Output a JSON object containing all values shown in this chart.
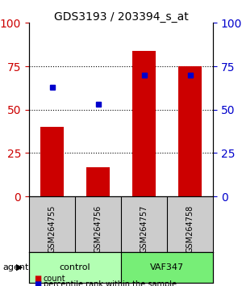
{
  "title": "GDS3193 / 203394_s_at",
  "samples": [
    "GSM264755",
    "GSM264756",
    "GSM264757",
    "GSM264758"
  ],
  "groups": [
    "control",
    "control",
    "VAF347",
    "VAF347"
  ],
  "bar_values": [
    40,
    17,
    84,
    75
  ],
  "dot_values": [
    63,
    53,
    70,
    70
  ],
  "bar_color": "#cc0000",
  "dot_color": "#0000cc",
  "ylim": [
    0,
    100
  ],
  "yticks": [
    0,
    25,
    50,
    75,
    100
  ],
  "group_colors": {
    "control": "#aaffaa",
    "VAF347": "#66dd66"
  },
  "group_label": "agent",
  "legend_bar": "count",
  "legend_dot": "percentile rank within the sample",
  "bg_plot": "#ffffff",
  "bg_sample": "#cccccc",
  "bg_group_control": "#b3ffb3",
  "bg_group_vaf": "#77ee77",
  "left_tick_color": "#cc0000",
  "right_tick_color": "#0000cc"
}
